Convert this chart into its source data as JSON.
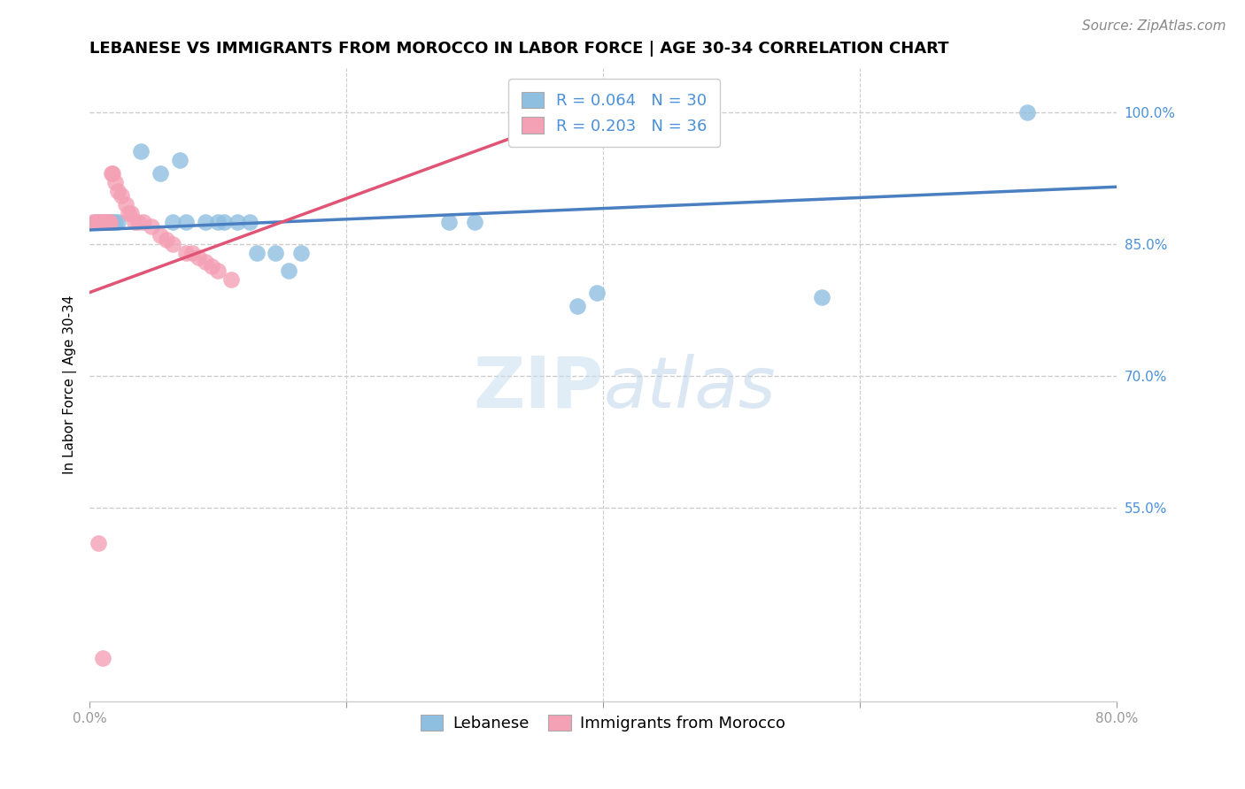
{
  "title": "LEBANESE VS IMMIGRANTS FROM MOROCCO IN LABOR FORCE | AGE 30-34 CORRELATION CHART",
  "source": "Source: ZipAtlas.com",
  "ylabel": "In Labor Force | Age 30-34",
  "watermark_zip": "ZIP",
  "watermark_atlas": "atlas",
  "xlim": [
    0.0,
    0.8
  ],
  "ylim": [
    0.33,
    1.05
  ],
  "ytick_values": [
    1.0,
    0.85,
    0.7,
    0.55
  ],
  "ytick_labels": [
    "100.0%",
    "85.0%",
    "70.0%",
    "55.0%"
  ],
  "xtick_values": [
    0.0,
    0.2,
    0.4,
    0.6,
    0.8
  ],
  "xtick_labels": [
    "0.0%",
    "",
    "",
    "",
    "80.0%"
  ],
  "grid_color": "#cccccc",
  "blue_color": "#8fbfe0",
  "pink_color": "#f4a0b5",
  "blue_line_color": "#4a7fc1",
  "pink_line_color": "#e05575",
  "R_blue": 0.064,
  "N_blue": 30,
  "R_pink": 0.203,
  "N_pink": 36,
  "blue_scatter_x": [
    0.005,
    0.008,
    0.01,
    0.012,
    0.014,
    0.015,
    0.017,
    0.018,
    0.02,
    0.022,
    0.04,
    0.055,
    0.065,
    0.075,
    0.09,
    0.1,
    0.105,
    0.115,
    0.125,
    0.13,
    0.145,
    0.155,
    0.165,
    0.28,
    0.3,
    0.38,
    0.395,
    0.57,
    0.73,
    0.07
  ],
  "blue_scatter_y": [
    0.875,
    0.875,
    0.875,
    0.875,
    0.875,
    0.875,
    0.875,
    0.875,
    0.875,
    0.875,
    0.955,
    0.93,
    0.875,
    0.875,
    0.875,
    0.875,
    0.875,
    0.875,
    0.875,
    0.84,
    0.84,
    0.82,
    0.84,
    0.875,
    0.875,
    0.78,
    0.795,
    0.79,
    1.0,
    0.945
  ],
  "pink_scatter_x": [
    0.003,
    0.005,
    0.007,
    0.008,
    0.009,
    0.01,
    0.011,
    0.012,
    0.013,
    0.014,
    0.015,
    0.016,
    0.017,
    0.018,
    0.02,
    0.022,
    0.025,
    0.028,
    0.03,
    0.032,
    0.035,
    0.038,
    0.042,
    0.048,
    0.055,
    0.06,
    0.065,
    0.075,
    0.08,
    0.085,
    0.09,
    0.095,
    0.1,
    0.11,
    0.007,
    0.01
  ],
  "pink_scatter_y": [
    0.875,
    0.875,
    0.875,
    0.875,
    0.875,
    0.875,
    0.875,
    0.875,
    0.875,
    0.875,
    0.875,
    0.875,
    0.93,
    0.93,
    0.92,
    0.91,
    0.905,
    0.895,
    0.885,
    0.885,
    0.875,
    0.875,
    0.875,
    0.87,
    0.86,
    0.855,
    0.85,
    0.84,
    0.84,
    0.835,
    0.83,
    0.825,
    0.82,
    0.81,
    0.51,
    0.38
  ],
  "blue_trend_x": [
    0.0,
    0.8
  ],
  "blue_trend_y": [
    0.866,
    0.915
  ],
  "pink_trend_x": [
    0.0,
    0.44
  ],
  "pink_trend_y": [
    0.795,
    1.03
  ],
  "title_fontsize": 13,
  "axis_fontsize": 11,
  "tick_fontsize": 11,
  "legend_fontsize": 13,
  "source_fontsize": 11
}
